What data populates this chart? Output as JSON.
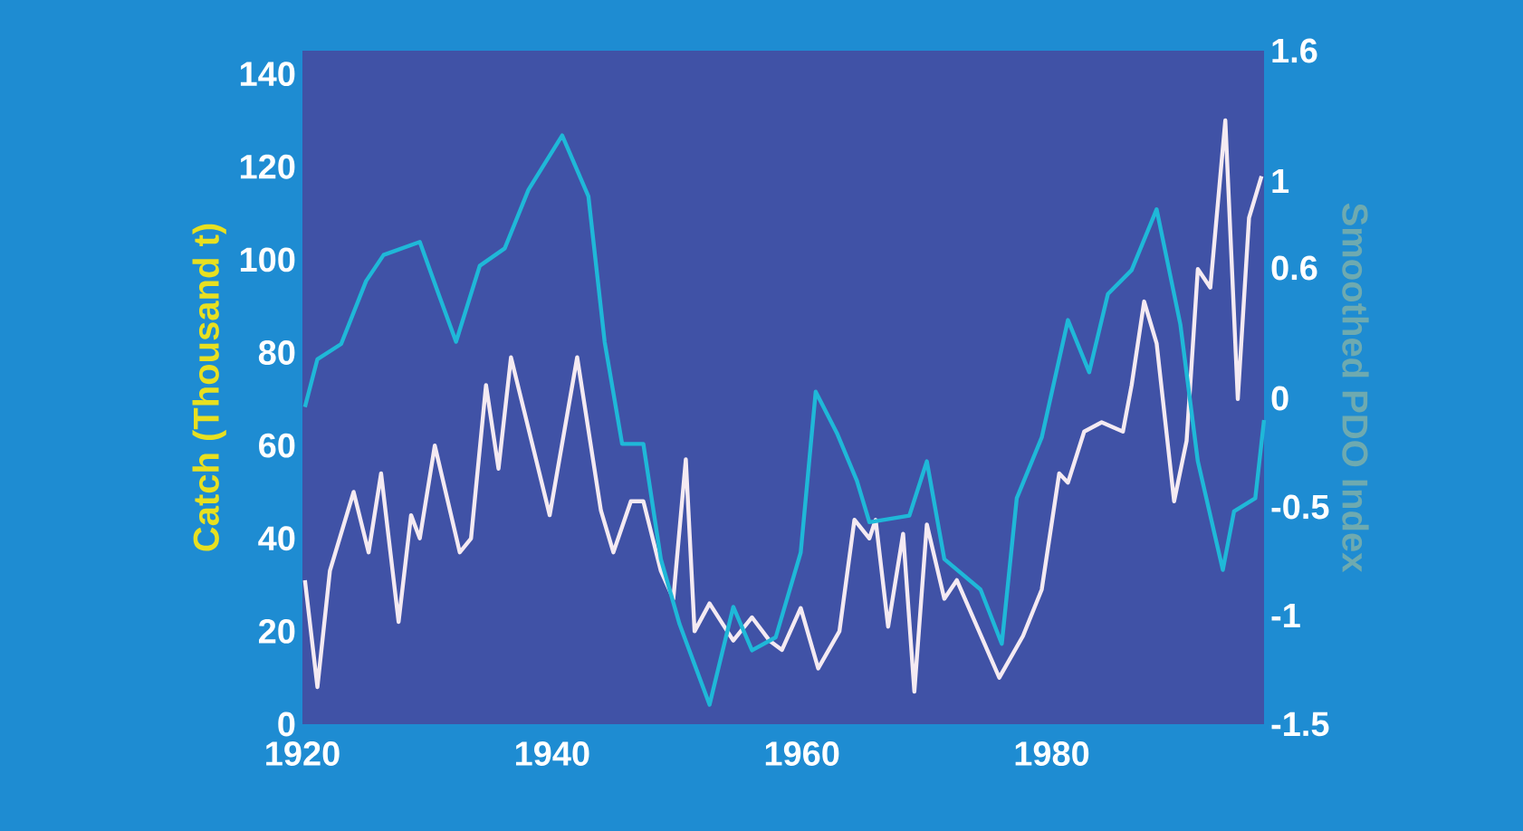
{
  "chart_data": {
    "type": "line",
    "ylabel": "Catch (Thousand t)",
    "y2label": "Smoothed PDO Index",
    "xlim": [
      1920,
      1997
    ],
    "xticks": [
      1920,
      1940,
      1960,
      1980
    ],
    "ylim": [
      0,
      145
    ],
    "yticks": [
      0,
      20,
      40,
      60,
      80,
      100,
      120,
      140
    ],
    "y2lim": [
      -1.5,
      1.6
    ],
    "y2ticks": [
      -1.5,
      -1,
      -0.5,
      0,
      0.6,
      1,
      1.6
    ],
    "series": [
      {
        "axis": "y",
        "color": "#f4eaf2",
        "x": [
          1920.2,
          1921.2,
          1922.2,
          1924.1,
          1925.3,
          1926.3,
          1927.7,
          1928.7,
          1929.4,
          1930.6,
          1932.6,
          1933.5,
          1934.7,
          1935.7,
          1936.7,
          1939.8,
          1942,
          1943.9,
          1944.9,
          1946.3,
          1947.3,
          1948.7,
          1949.7,
          1950.7,
          1951.4,
          1952.6,
          1954.5,
          1956,
          1957.4,
          1958.4,
          1959.9,
          1961.3,
          1963,
          1964.2,
          1965.4,
          1965.9,
          1966.9,
          1968.1,
          1969,
          1970,
          1971.4,
          1972.4,
          1975.8,
          1977.7,
          1979.2,
          1980.6,
          1981.3,
          1982.6,
          1984,
          1985.7,
          1986.4,
          1987.4,
          1988.4,
          1989.8,
          1990.8,
          1991.7,
          1992.7,
          1993.9,
          1994.9,
          1995.8,
          1996.8
        ],
        "values": [
          31,
          8,
          33,
          50,
          37,
          54,
          22,
          45,
          40,
          60,
          37,
          40,
          73,
          55,
          79,
          45,
          79,
          46,
          37,
          48,
          48,
          33,
          27,
          57,
          20,
          26,
          18,
          23,
          18,
          16,
          25,
          12,
          20,
          44,
          40,
          44,
          21,
          41,
          7,
          43,
          27,
          31,
          10,
          19,
          29,
          54,
          52,
          63,
          65,
          63,
          73,
          91,
          82,
          48,
          61,
          98,
          94,
          130,
          70,
          109,
          118
        ]
      },
      {
        "axis": "y2",
        "color": "#1fb8d8",
        "x": [
          1920.2,
          1921.2,
          1923.1,
          1925.1,
          1926.5,
          1929.4,
          1930.9,
          1932.3,
          1934.2,
          1936.2,
          1938.1,
          1940.8,
          1942.9,
          1944.2,
          1945.6,
          1947.3,
          1948.7,
          1950.2,
          1952.6,
          1954.5,
          1956,
          1957.9,
          1959.9,
          1961.1,
          1962.8,
          1964.4,
          1965.4,
          1968.6,
          1970,
          1971.4,
          1974.3,
          1976,
          1977.2,
          1979.2,
          1981.3,
          1983,
          1984.5,
          1986.4,
          1988.4,
          1990.3,
          1991.7,
          1993.7,
          1994.6,
          1996.3,
          1997
        ],
        "values": [
          -0.04,
          0.18,
          0.25,
          0.54,
          0.66,
          0.72,
          0.48,
          0.26,
          0.61,
          0.69,
          0.96,
          1.21,
          0.93,
          0.26,
          -0.21,
          -0.21,
          -0.74,
          -1.04,
          -1.41,
          -0.96,
          -1.16,
          -1.1,
          -0.71,
          0.03,
          -0.16,
          -0.38,
          -0.57,
          -0.54,
          -0.29,
          -0.74,
          -0.88,
          -1.13,
          -0.46,
          -0.18,
          0.36,
          0.12,
          0.48,
          0.59,
          0.87,
          0.34,
          -0.29,
          -0.79,
          -0.52,
          -0.46,
          -0.1
        ]
      }
    ]
  }
}
